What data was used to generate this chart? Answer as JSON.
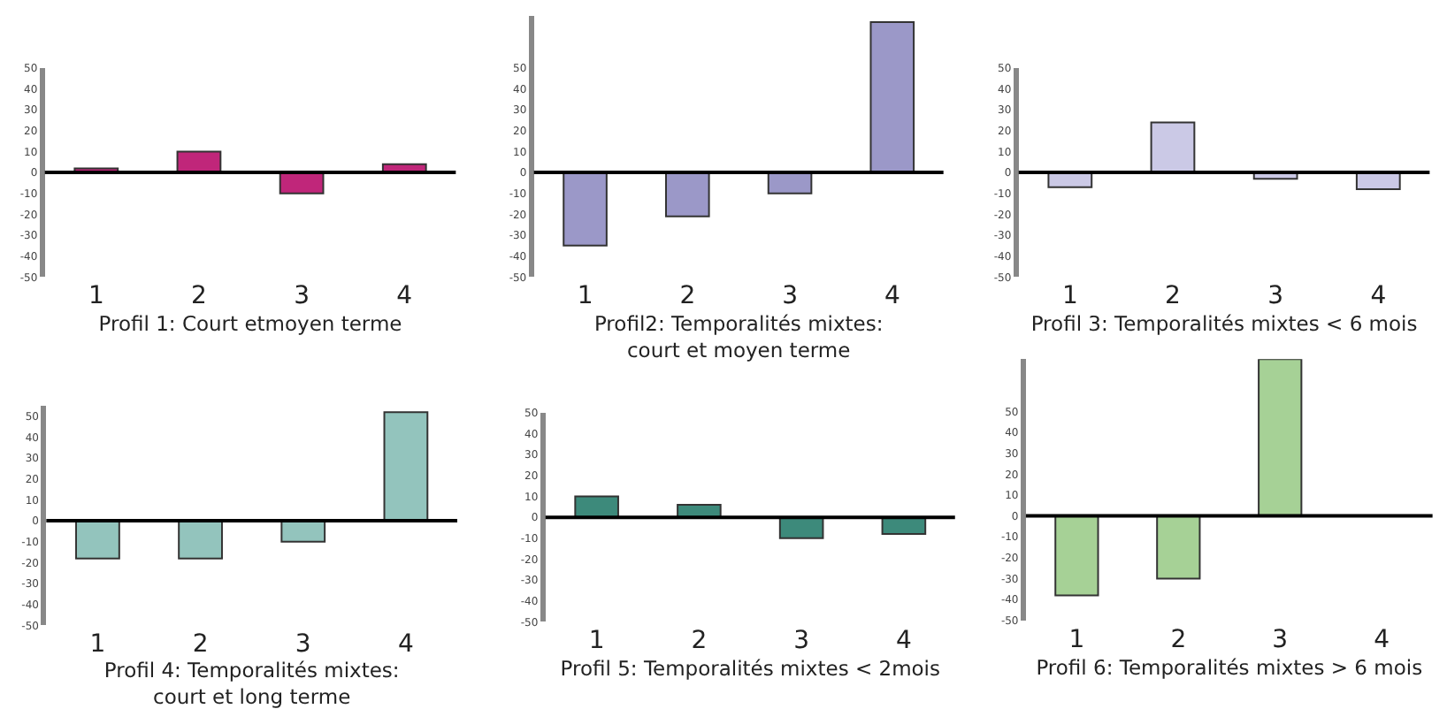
{
  "chart_data": [
    {
      "type": "bar",
      "xlabel": "Profil 1: Court etmoyen terme",
      "categories": [
        "1",
        "2",
        "3",
        "4"
      ],
      "values": [
        2,
        10,
        -10,
        4
      ],
      "color": "#c0267a",
      "ylim": [
        -50,
        50
      ],
      "yticks": [
        -50,
        -40,
        -30,
        -20,
        -10,
        0,
        10,
        20,
        30,
        40,
        50
      ],
      "ref_lines": [
        {
          "axis": "y",
          "value": 0,
          "color": "#000000"
        }
      ]
    },
    {
      "type": "bar",
      "xlabel": "Profil2: Temporalités mixtes:\ncourt et moyen terme",
      "categories": [
        "1",
        "2",
        "3",
        "4"
      ],
      "values": [
        -35,
        -21,
        -10,
        72
      ],
      "color": "#9b98c8",
      "ylim": [
        -50,
        75
      ],
      "yticks": [
        -50,
        -40,
        -30,
        -20,
        -10,
        0,
        10,
        20,
        30,
        40,
        50
      ],
      "ref_lines": [
        {
          "axis": "y",
          "value": 0,
          "color": "#000000"
        }
      ]
    },
    {
      "type": "bar",
      "xlabel": "Profil 3: Temporalités mixtes < 6 mois",
      "categories": [
        "1",
        "2",
        "3",
        "4"
      ],
      "values": [
        -7,
        24,
        -3,
        -8
      ],
      "color": "#cbc9e6",
      "ylim": [
        -50,
        50
      ],
      "yticks": [
        -50,
        -40,
        -30,
        -20,
        -10,
        0,
        10,
        20,
        30,
        40,
        50
      ],
      "ref_lines": [
        {
          "axis": "y",
          "value": 0,
          "color": "#000000"
        }
      ]
    },
    {
      "type": "bar",
      "xlabel": "Profil 4: Temporalités mixtes:\ncourt et long terme",
      "categories": [
        "1",
        "2",
        "3",
        "4"
      ],
      "values": [
        -18,
        -18,
        -10,
        52
      ],
      "color": "#93c4bd",
      "ylim": [
        -50,
        55
      ],
      "yticks": [
        -50,
        -40,
        -30,
        -20,
        -10,
        0,
        10,
        20,
        30,
        40,
        50
      ],
      "ref_lines": [
        {
          "axis": "y",
          "value": 0,
          "color": "#000000"
        }
      ]
    },
    {
      "type": "bar",
      "xlabel": "Profil 5: Temporalités mixtes < 2mois",
      "categories": [
        "1",
        "2",
        "3",
        "4"
      ],
      "values": [
        10,
        6,
        -10,
        -8
      ],
      "color": "#3d8a7b",
      "ylim": [
        -50,
        50
      ],
      "yticks": [
        -50,
        -40,
        -30,
        -20,
        -10,
        0,
        10,
        20,
        30,
        40,
        50
      ],
      "ref_lines": [
        {
          "axis": "y",
          "value": 0,
          "color": "#000000"
        }
      ]
    },
    {
      "type": "bar",
      "xlabel": "Profil 6: Temporalités mixtes > 6 mois",
      "categories": [
        "1",
        "2",
        "3",
        "4"
      ],
      "values": [
        -38,
        -30,
        75,
        null
      ],
      "color": "#a6d196",
      "ylim": [
        -50,
        75
      ],
      "yticks": [
        -50,
        -40,
        -30,
        -20,
        -10,
        0,
        10,
        20,
        30,
        40,
        50
      ],
      "ref_lines": [
        {
          "axis": "y",
          "value": 0,
          "color": "#000000"
        }
      ]
    }
  ]
}
